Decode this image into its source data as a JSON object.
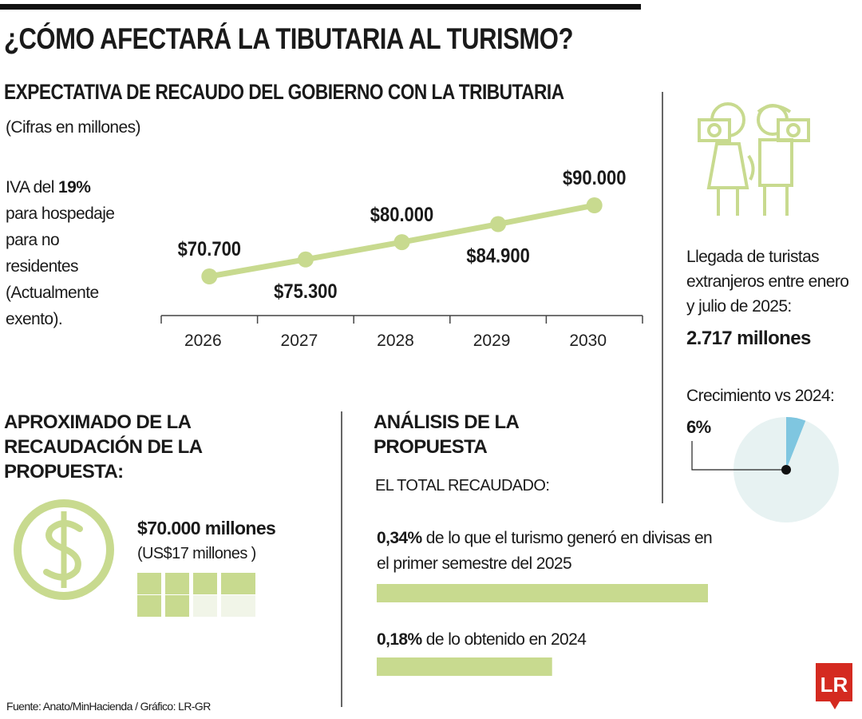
{
  "header": {
    "title": "¿CÓMO AFECTARÁ LA TIBUTARIA AL TURISMO?"
  },
  "note": {
    "prefix": "IVA del",
    "highlight": "19%",
    "text": "para hospedaje para no residentes (Actualmente exento)."
  },
  "arrivals": {
    "text": "Llegada de turistas extranjeros entre enero y julio de 2025:",
    "value": "2.717 millones"
  },
  "collection": {
    "title": "APROXIMADO DE LA RECAUDACIÓN DE LA PROPUESTA:",
    "value": "$70.000 millones",
    "usd": "(US$17 millones )"
  },
  "source": "Fuente: Anato/MinHacienda / Gráfico: LR-GR",
  "logo": "LR",
  "chart_data": [
    {
      "type": "line",
      "title": "EXPECTATIVA DE RECAUDO DEL GOBIERNO CON LA TRIBUTARIA",
      "subtitle": "(Cifras en millones)",
      "categories": [
        "2026",
        "2027",
        "2028",
        "2029",
        "2030"
      ],
      "values": [
        70700,
        75300,
        80000,
        84900,
        90000
      ],
      "value_labels": [
        "$70.700",
        "$75.300",
        "$80.000",
        "$84.900",
        "$90.000"
      ],
      "color": "#c8da8f"
    },
    {
      "type": "pie",
      "title": "Crecimiento vs 2024:",
      "values": [
        6
      ],
      "value_labels": [
        "6%"
      ],
      "color": "#7fc6e0"
    },
    {
      "type": "bar",
      "title": "ANÁLISIS DE LA PROPUESTA",
      "subtitle": "EL TOTAL RECAUDADO:",
      "categories": [
        "de lo que el turismo generó en divisas en el primer semestre del 2025",
        "de lo obtenido en 2024"
      ],
      "values": [
        0.34,
        0.18
      ],
      "value_labels": [
        "0,34%",
        "0,18%"
      ],
      "color": "#c8da8f"
    }
  ]
}
